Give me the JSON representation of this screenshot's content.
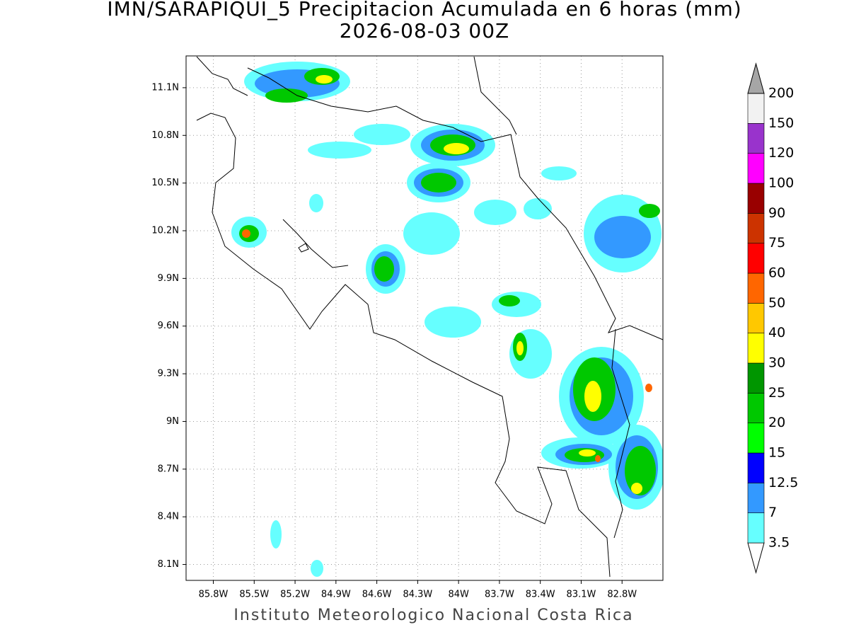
{
  "map": {
    "title": "IMN/SARAPIQUI_5 Precipitacion Acumulada en 6 horas (mm)",
    "subtitle": "2026-08-03 00Z",
    "footer": "Instituto Meteorologico Nacional Costa Rica",
    "lon_range": [
      -86.0,
      -82.5
    ],
    "lat_range": [
      8.0,
      11.3
    ],
    "lon_ticks": [
      {
        "value": -85.8,
        "label": "85.8W"
      },
      {
        "value": -85.5,
        "label": "85.5W"
      },
      {
        "value": -85.2,
        "label": "85.2W"
      },
      {
        "value": -84.9,
        "label": "84.9W"
      },
      {
        "value": -84.6,
        "label": "84.6W"
      },
      {
        "value": -84.3,
        "label": "84.3W"
      },
      {
        "value": -84.0,
        "label": "84W"
      },
      {
        "value": -83.7,
        "label": "83.7W"
      },
      {
        "value": -83.4,
        "label": "83.4W"
      },
      {
        "value": -83.1,
        "label": "83.1W"
      },
      {
        "value": -82.8,
        "label": "82.8W"
      }
    ],
    "lat_ticks": [
      {
        "value": 8.1,
        "label": "8.1N"
      },
      {
        "value": 8.4,
        "label": "8.4N"
      },
      {
        "value": 8.7,
        "label": "8.7N"
      },
      {
        "value": 9.0,
        "label": "9N"
      },
      {
        "value": 9.3,
        "label": "9.3N"
      },
      {
        "value": 9.6,
        "label": "9.6N"
      },
      {
        "value": 9.9,
        "label": "9.9N"
      },
      {
        "value": 10.2,
        "label": "10.2N"
      },
      {
        "value": 10.5,
        "label": "10.5N"
      },
      {
        "value": 10.8,
        "label": "10.8N"
      },
      {
        "value": 11.1,
        "label": "11.1N"
      }
    ],
    "grid": true,
    "colorbar": {
      "levels": [
        3.5,
        7,
        12.5,
        15,
        20,
        25,
        30,
        40,
        50,
        60,
        75,
        90,
        100,
        120,
        150,
        200
      ],
      "colors": [
        "#ffffff",
        "#66ffff",
        "#3399ff",
        "#0000ff",
        "#00ff00",
        "#00c800",
        "#009600",
        "#ffff00",
        "#ffc800",
        "#ff6600",
        "#ff0000",
        "#cc3300",
        "#990000",
        "#ff00ff",
        "#9933cc",
        "#f2f2f2",
        "#a6a6a6"
      ]
    }
  }
}
